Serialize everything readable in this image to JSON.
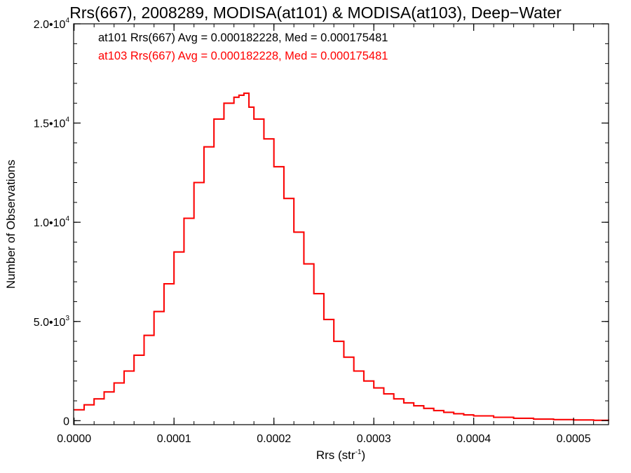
{
  "chart_data": {
    "type": "line",
    "title": "Rrs(667), 2008289, MODISA(at101) & MODISA(at103), Deep−Water",
    "xlabel": "Rrs (str",
    "xlabel_sup": "-1",
    "xlabel_end": ")",
    "ylabel": "Number of Observations",
    "xlim": [
      -5e-07,
      0.000535
    ],
    "ylim": [
      -200,
      20000
    ],
    "x_ticks": [
      0,
      0.0001,
      0.0002,
      0.0003,
      0.0004,
      0.0005
    ],
    "x_tick_labels": [
      "0.0000",
      "0.0001",
      "0.0002",
      "0.0003",
      "0.0004",
      "0.0005"
    ],
    "y_ticks": [
      {
        "value": 0,
        "mantissa": "0",
        "exp": ""
      },
      {
        "value": 5000,
        "mantissa": "5.0•10",
        "exp": "3"
      },
      {
        "value": 10000,
        "mantissa": "1.0•10",
        "exp": "4"
      },
      {
        "value": 15000,
        "mantissa": "1.5•10",
        "exp": "4"
      },
      {
        "value": 20000,
        "mantissa": "2.0•10",
        "exp": "4"
      }
    ],
    "annotations": [
      {
        "text": "at101 Rrs(667) Avg = 0.000182228, Med = 0.000175481",
        "color": "#000000"
      },
      {
        "text": "at103 Rrs(667) Avg = 0.000182228, Med = 0.000175481",
        "color": "#ff0000"
      }
    ],
    "series": [
      {
        "color": "#000000",
        "step": true,
        "x": [
          0.0,
          1e-05,
          2e-05,
          3e-05,
          4e-05,
          5e-05,
          6e-05,
          7e-05,
          8e-05,
          9e-05,
          0.0001,
          0.00011,
          0.00012,
          0.00013,
          0.00014,
          0.00015,
          0.00016,
          0.000165,
          0.00017,
          0.000175,
          0.00018,
          0.00019,
          0.0002,
          0.00021,
          0.00022,
          0.00023,
          0.00024,
          0.00025,
          0.00026,
          0.00027,
          0.00028,
          0.00029,
          0.0003,
          0.00031,
          0.00032,
          0.00033,
          0.00034,
          0.00035,
          0.00036,
          0.00037,
          0.00038,
          0.00039,
          0.0004,
          0.00042,
          0.00044,
          0.00046,
          0.00048,
          0.0005,
          0.00052,
          0.000535
        ],
        "y": [
          550,
          800,
          1100,
          1450,
          1900,
          2500,
          3300,
          4300,
          5500,
          6900,
          8500,
          10200,
          12000,
          13800,
          15200,
          16000,
          16300,
          16400,
          16500,
          15800,
          15200,
          14200,
          12800,
          11200,
          9500,
          7900,
          6400,
          5100,
          4000,
          3200,
          2500,
          2000,
          1650,
          1350,
          1100,
          900,
          750,
          620,
          510,
          420,
          350,
          290,
          240,
          170,
          120,
          80,
          55,
          35,
          20,
          10
        ]
      },
      {
        "color": "#ff0000",
        "step": true,
        "x": [
          0.0,
          1e-05,
          2e-05,
          3e-05,
          4e-05,
          5e-05,
          6e-05,
          7e-05,
          8e-05,
          9e-05,
          0.0001,
          0.00011,
          0.00012,
          0.00013,
          0.00014,
          0.00015,
          0.00016,
          0.000165,
          0.00017,
          0.000175,
          0.00018,
          0.00019,
          0.0002,
          0.00021,
          0.00022,
          0.00023,
          0.00024,
          0.00025,
          0.00026,
          0.00027,
          0.00028,
          0.00029,
          0.0003,
          0.00031,
          0.00032,
          0.00033,
          0.00034,
          0.00035,
          0.00036,
          0.00037,
          0.00038,
          0.00039,
          0.0004,
          0.00042,
          0.00044,
          0.00046,
          0.00048,
          0.0005,
          0.00052,
          0.000535
        ],
        "y": [
          550,
          800,
          1100,
          1450,
          1900,
          2500,
          3300,
          4300,
          5500,
          6900,
          8500,
          10200,
          12000,
          13800,
          15200,
          16000,
          16300,
          16400,
          16500,
          15800,
          15200,
          14200,
          12800,
          11200,
          9500,
          7900,
          6400,
          5100,
          4000,
          3200,
          2500,
          2000,
          1650,
          1350,
          1100,
          900,
          750,
          620,
          510,
          420,
          350,
          290,
          240,
          170,
          120,
          80,
          55,
          35,
          20,
          10
        ]
      }
    ]
  }
}
